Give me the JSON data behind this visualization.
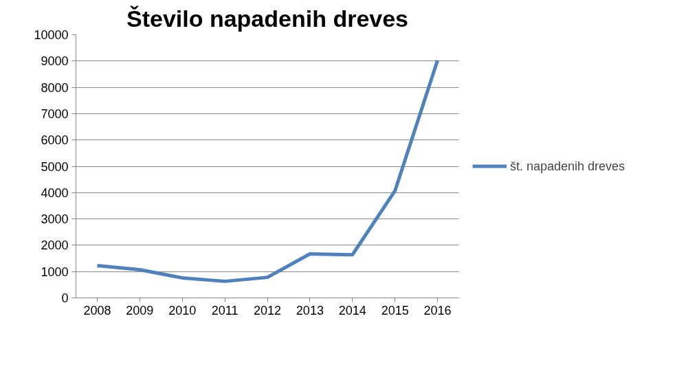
{
  "chart_data": {
    "type": "line",
    "title": "Število napadenih dreves",
    "categories": [
      "2008",
      "2009",
      "2010",
      "2011",
      "2012",
      "2013",
      "2014",
      "2015",
      "2016"
    ],
    "series": [
      {
        "name": "št. napadenih dreves",
        "color": "#4f81bd",
        "values": [
          1230,
          1070,
          760,
          630,
          780,
          1670,
          1640,
          4070,
          9030
        ]
      }
    ],
    "ylim": [
      0,
      10000
    ],
    "yticks": [
      0,
      1000,
      2000,
      3000,
      4000,
      5000,
      6000,
      7000,
      8000,
      9000,
      10000
    ],
    "grid": "y",
    "legend": "right",
    "marker": "none",
    "line_style": "solid"
  }
}
